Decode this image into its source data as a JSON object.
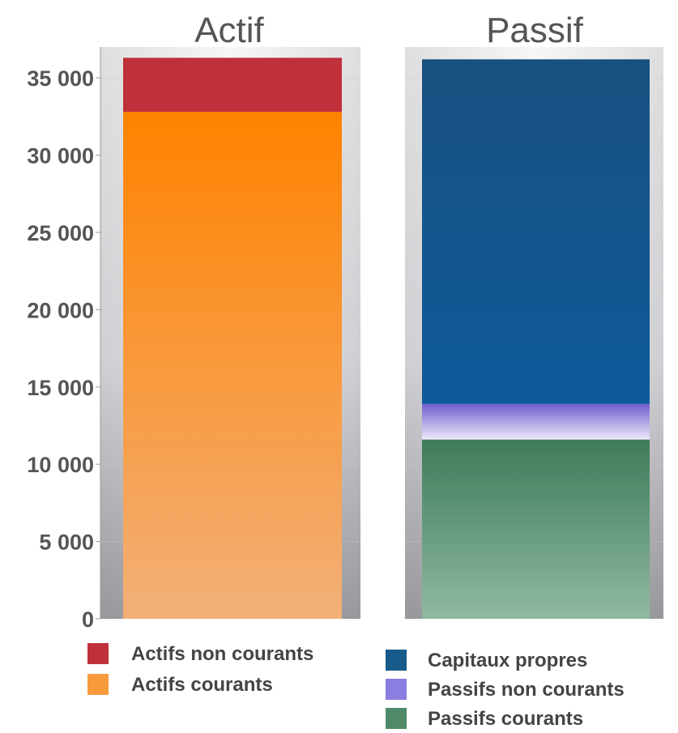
{
  "chart_data": {
    "type": "bar",
    "stacked": true,
    "panels": [
      {
        "title": "Actif",
        "segments": [
          {
            "name": "Actifs courants",
            "value": 32800,
            "color_top": "#ff8200",
            "color_bottom": "#f2b078"
          },
          {
            "name": "Actifs non courants",
            "value": 3500,
            "color_top": "#c0303a",
            "color_bottom": "#c0303a"
          }
        ]
      },
      {
        "title": "Passif",
        "segments": [
          {
            "name": "Passifs courants",
            "value": 11600,
            "color_top": "#3e7b5a",
            "color_bottom": "#8fb9a3"
          },
          {
            "name": "Passifs non courants",
            "value": 2300,
            "color_top": "#6f5fd0",
            "color_bottom": "#ece9f8"
          },
          {
            "name": "Capitaux propres",
            "value": 22300,
            "color_top": "#185080",
            "color_bottom": "#0d5a9a"
          }
        ]
      }
    ],
    "ylim": [
      0,
      37000
    ],
    "yticks": [
      0,
      5000,
      10000,
      15000,
      20000,
      25000,
      30000,
      35000
    ],
    "ytick_labels": [
      "0",
      "5 000",
      "10 000",
      "15 000",
      "20 000",
      "25 000",
      "30 000",
      "35 000"
    ],
    "grid": true,
    "legend_placement": "bottom"
  },
  "legend": {
    "left": [
      {
        "label": "Actifs non courants",
        "color": "#c0303a"
      },
      {
        "label": "Actifs courants",
        "color": "#f79a3c"
      }
    ],
    "right": [
      {
        "label": "Capitaux propres",
        "color": "#185a8a"
      },
      {
        "label": "Passifs non courants",
        "color": "#8a7fe0"
      },
      {
        "label": "Passifs courants",
        "color": "#4f8a68"
      }
    ]
  }
}
